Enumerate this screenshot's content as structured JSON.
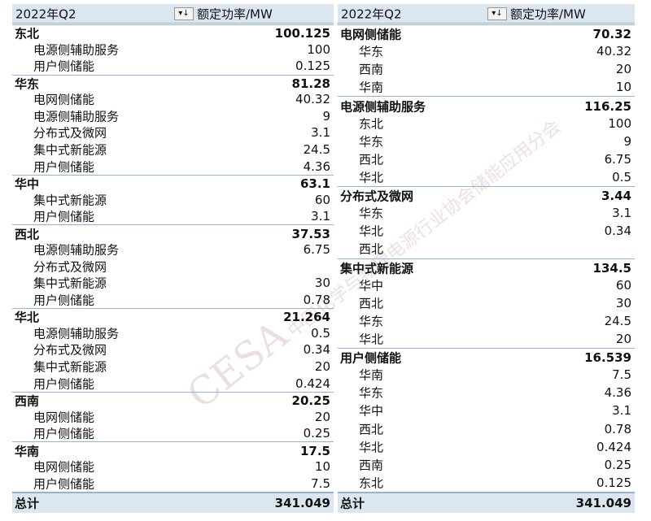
{
  "tables": [
    {
      "header": {
        "field": "2022年Q2",
        "measure": "额定功率/MW"
      },
      "groups": [
        {
          "name": "东北",
          "value": "100.125",
          "items": [
            {
              "name": "电源侧辅助服务",
              "value": "100"
            },
            {
              "name": "用户侧储能",
              "value": "0.125"
            }
          ]
        },
        {
          "name": "华东",
          "value": "81.28",
          "items": [
            {
              "name": "电网侧储能",
              "value": "40.32"
            },
            {
              "name": "电源侧辅助服务",
              "value": "9"
            },
            {
              "name": "分布式及微网",
              "value": "3.1"
            },
            {
              "name": "集中式新能源",
              "value": "24.5"
            },
            {
              "name": "用户侧储能",
              "value": "4.36"
            }
          ]
        },
        {
          "name": "华中",
          "value": "63.1",
          "items": [
            {
              "name": "集中式新能源",
              "value": "60"
            },
            {
              "name": "用户侧储能",
              "value": "3.1"
            }
          ]
        },
        {
          "name": "西北",
          "value": "37.53",
          "items": [
            {
              "name": "电源侧辅助服务",
              "value": "6.75"
            },
            {
              "name": "分布式及微网",
              "value": null
            },
            {
              "name": "集中式新能源",
              "value": "30"
            },
            {
              "name": "用户侧储能",
              "value": "0.78"
            }
          ]
        },
        {
          "name": "华北",
          "value": "21.264",
          "items": [
            {
              "name": "电源侧辅助服务",
              "value": "0.5"
            },
            {
              "name": "分布式及微网",
              "value": "0.34"
            },
            {
              "name": "集中式新能源",
              "value": "20"
            },
            {
              "name": "用户侧储能",
              "value": "0.424"
            }
          ]
        },
        {
          "name": "西南",
          "value": "20.25",
          "items": [
            {
              "name": "电网侧储能",
              "value": "20"
            },
            {
              "name": "用户侧储能",
              "value": "0.25"
            }
          ]
        },
        {
          "name": "华南",
          "value": "17.5",
          "items": [
            {
              "name": "电网侧储能",
              "value": "10"
            },
            {
              "name": "用户侧储能",
              "value": "7.5"
            }
          ]
        }
      ],
      "total": {
        "label": "总计",
        "value": "341.049"
      }
    },
    {
      "header": {
        "field": "2022年Q2",
        "measure": "额定功率/MW"
      },
      "groups": [
        {
          "name": "电网侧储能",
          "value": "70.32",
          "items": [
            {
              "name": "华东",
              "value": "40.32"
            },
            {
              "name": "西南",
              "value": "20"
            },
            {
              "name": "华南",
              "value": "10"
            }
          ]
        },
        {
          "name": "电源侧辅助服务",
          "value": "116.25",
          "items": [
            {
              "name": "东北",
              "value": "100"
            },
            {
              "name": "华东",
              "value": "9"
            },
            {
              "name": "西北",
              "value": "6.75"
            },
            {
              "name": "华北",
              "value": "0.5"
            }
          ]
        },
        {
          "name": "分布式及微网",
          "value": "3.44",
          "items": [
            {
              "name": "华东",
              "value": "3.1"
            },
            {
              "name": "华北",
              "value": "0.34"
            },
            {
              "name": "西北",
              "value": null
            }
          ]
        },
        {
          "name": "集中式新能源",
          "value": "134.5",
          "items": [
            {
              "name": "华中",
              "value": "60"
            },
            {
              "name": "西北",
              "value": "30"
            },
            {
              "name": "华东",
              "value": "24.5"
            },
            {
              "name": "华北",
              "value": "20"
            }
          ]
        },
        {
          "name": "用户侧储能",
          "value": "16.539",
          "items": [
            {
              "name": "华南",
              "value": "7.5"
            },
            {
              "name": "华东",
              "value": "4.36"
            },
            {
              "name": "华中",
              "value": "3.1"
            },
            {
              "name": "西北",
              "value": "0.78"
            },
            {
              "name": "华北",
              "value": "0.424"
            },
            {
              "name": "西南",
              "value": "0.25"
            },
            {
              "name": "东北",
              "value": "0.125"
            }
          ]
        }
      ],
      "total": {
        "label": "总计",
        "value": "341.049"
      }
    }
  ],
  "watermark": {
    "logo": "CESA",
    "text": "中国化学与物理电源行业协会储能应用分会"
  }
}
